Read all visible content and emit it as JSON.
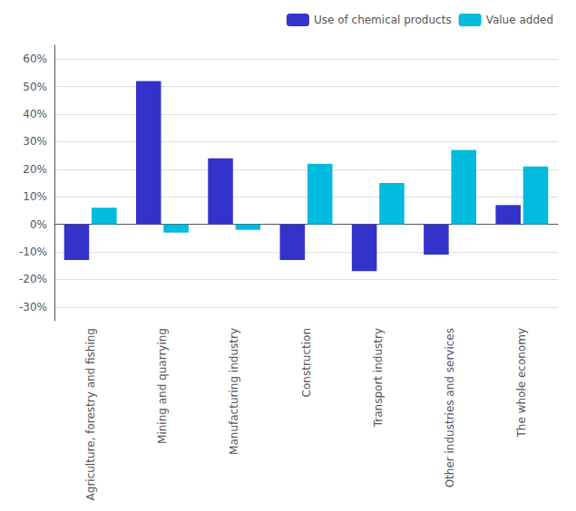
{
  "chart_data": {
    "type": "bar",
    "categories": [
      "Agriculture, forestry and fishing",
      "Mining and quarrying",
      "Manufacturing industry",
      "Construction",
      "Transport industry",
      "Other industries and services",
      "The whole economy"
    ],
    "series": [
      {
        "name": "Use of chemical products",
        "color": "#3333cc",
        "values": [
          -13,
          52,
          24,
          -13,
          -17,
          -11,
          7
        ]
      },
      {
        "name": "Value added",
        "color": "#00bbdd",
        "values": [
          6,
          -3,
          -2,
          22,
          15,
          27,
          21
        ]
      }
    ],
    "ylim": [
      -35,
      65
    ],
    "yticks": [
      {
        "value": -30,
        "label": "-30%"
      },
      {
        "value": -20,
        "label": "-20%"
      },
      {
        "value": -10,
        "label": "-10%"
      },
      {
        "value": 0,
        "label": "0%"
      },
      {
        "value": 10,
        "label": "10%"
      },
      {
        "value": 20,
        "label": "20%"
      },
      {
        "value": 30,
        "label": "30%"
      },
      {
        "value": 40,
        "label": "40%"
      },
      {
        "value": 50,
        "label": "50%"
      },
      {
        "value": 60,
        "label": "60%"
      }
    ],
    "grid": true,
    "legend": "upper right"
  }
}
